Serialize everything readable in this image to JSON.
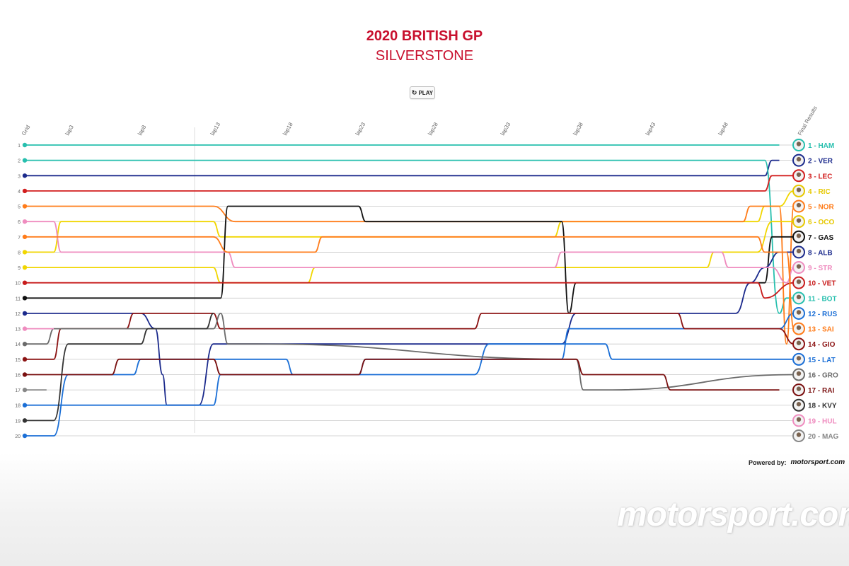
{
  "header": {
    "title": "2020 BRITISH GP",
    "subtitle": "SILVERSTONE",
    "play_label": "PLAY"
  },
  "footer": {
    "powered_label": "Powered by:",
    "powered_logo": "motorsport.com",
    "watermark": "motorsport.com"
  },
  "chart_data": {
    "type": "line",
    "x_axis": {
      "start_label": "Grid",
      "end_label": "Final Results",
      "ticks": [
        3,
        8,
        13,
        18,
        23,
        28,
        33,
        38,
        43,
        48
      ],
      "tick_prefix": "lap"
    },
    "y_axis": {
      "min": 1,
      "max": 20,
      "inverted": true,
      "tick_labels": [
        1,
        2,
        3,
        4,
        5,
        6,
        7,
        8,
        9,
        10,
        11,
        12,
        13,
        14,
        15,
        16,
        17,
        18,
        19,
        20
      ]
    },
    "x_range": [
      0,
      53
    ],
    "series": [
      {
        "name": "HAM",
        "color": "#27bfae",
        "points": [
          [
            0,
            1
          ],
          [
            52,
            1
          ]
        ]
      },
      {
        "name": "VER",
        "color": "#1b2a8c",
        "points": [
          [
            0,
            3
          ],
          [
            51,
            3
          ],
          [
            51.5,
            2
          ],
          [
            52,
            2
          ]
        ]
      },
      {
        "name": "BOT",
        "color": "#27bfae",
        "points": [
          [
            0,
            2
          ],
          [
            51,
            2
          ],
          [
            52,
            12
          ],
          [
            52.5,
            11
          ],
          [
            53,
            11
          ]
        ]
      },
      {
        "name": "LEC",
        "color": "#d21e1e",
        "points": [
          [
            0,
            4
          ],
          [
            51,
            4
          ],
          [
            51.5,
            3
          ],
          [
            53,
            3
          ]
        ]
      },
      {
        "name": "RIC",
        "color": "#f1d600",
        "points": [
          [
            0,
            8
          ],
          [
            2,
            8
          ],
          [
            2.5,
            6
          ],
          [
            13,
            6
          ],
          [
            13.5,
            7
          ],
          [
            36.5,
            7
          ],
          [
            37,
            6
          ],
          [
            50.5,
            6
          ],
          [
            51,
            5
          ],
          [
            52,
            5
          ],
          [
            53,
            4
          ]
        ]
      },
      {
        "name": "NOR",
        "color": "#ff7c1a",
        "points": [
          [
            0,
            5
          ],
          [
            13,
            5
          ],
          [
            14.5,
            6
          ],
          [
            49.5,
            6
          ],
          [
            50,
            5
          ],
          [
            52,
            5
          ],
          [
            52.5,
            14
          ],
          [
            53,
            5
          ]
        ]
      },
      {
        "name": "OCO",
        "color": "#f1d600",
        "points": [
          [
            0,
            9
          ],
          [
            13,
            9
          ],
          [
            13.5,
            10
          ],
          [
            19.5,
            10
          ],
          [
            20,
            9
          ],
          [
            47,
            9
          ],
          [
            47.5,
            8
          ],
          [
            50.5,
            8
          ],
          [
            51.5,
            6
          ],
          [
            53,
            6
          ]
        ]
      },
      {
        "name": "GAS",
        "color": "#111111",
        "points": [
          [
            0,
            11
          ],
          [
            13.5,
            11
          ],
          [
            14,
            5
          ],
          [
            23,
            5
          ],
          [
            23.5,
            6
          ],
          [
            37,
            6
          ],
          [
            37.5,
            12
          ],
          [
            38,
            10
          ],
          [
            51,
            10
          ],
          [
            51.5,
            7
          ],
          [
            53,
            7
          ]
        ]
      },
      {
        "name": "ALB",
        "color": "#1b2a8c",
        "points": [
          [
            0,
            12
          ],
          [
            8,
            12
          ],
          [
            9,
            13
          ],
          [
            9.5,
            16
          ],
          [
            9.8,
            18
          ],
          [
            12,
            18
          ],
          [
            13,
            14
          ],
          [
            37,
            14
          ],
          [
            38,
            12
          ],
          [
            49,
            12
          ],
          [
            50,
            10
          ],
          [
            51,
            9
          ],
          [
            52,
            8
          ],
          [
            53,
            8
          ]
        ]
      },
      {
        "name": "STR",
        "color": "#ef8cbf",
        "points": [
          [
            0,
            6
          ],
          [
            2,
            6
          ],
          [
            2.5,
            8
          ],
          [
            14,
            8
          ],
          [
            14.5,
            9
          ],
          [
            36.5,
            9
          ],
          [
            37,
            8
          ],
          [
            48,
            8
          ],
          [
            48.5,
            9
          ],
          [
            51.5,
            9
          ],
          [
            52.5,
            10
          ],
          [
            53,
            9
          ]
        ]
      },
      {
        "name": "VET",
        "color": "#c81c1c",
        "points": [
          [
            0,
            10
          ],
          [
            50.5,
            10
          ],
          [
            51,
            11
          ],
          [
            53,
            10
          ]
        ]
      },
      {
        "name": "RUS",
        "color": "#1b6fd6",
        "points": [
          [
            0,
            18
          ],
          [
            13,
            18
          ],
          [
            13.5,
            16
          ],
          [
            23,
            16
          ],
          [
            23.5,
            15
          ],
          [
            37,
            15
          ],
          [
            37.5,
            13
          ],
          [
            50,
            13
          ],
          [
            52,
            13
          ],
          [
            53,
            12
          ]
        ]
      },
      {
        "name": "SAI",
        "color": "#ff7c1a",
        "points": [
          [
            0,
            7
          ],
          [
            13,
            7
          ],
          [
            14,
            8
          ],
          [
            20,
            8
          ],
          [
            20.5,
            7
          ],
          [
            50.5,
            7
          ],
          [
            51,
            8
          ],
          [
            52.5,
            8
          ],
          [
            53,
            13
          ]
        ]
      },
      {
        "name": "GIO",
        "color": "#8b1212",
        "points": [
          [
            0,
            15
          ],
          [
            2,
            15
          ],
          [
            2.5,
            13
          ],
          [
            7,
            13
          ],
          [
            7.5,
            12
          ],
          [
            13,
            12
          ],
          [
            13.5,
            13
          ],
          [
            31,
            13
          ],
          [
            31.5,
            12
          ],
          [
            45,
            12
          ],
          [
            45.5,
            13
          ],
          [
            50,
            13
          ],
          [
            52,
            13
          ],
          [
            53,
            14
          ]
        ]
      },
      {
        "name": "LAT",
        "color": "#1b6fd6",
        "points": [
          [
            0,
            20
          ],
          [
            2,
            20
          ],
          [
            3,
            16
          ],
          [
            7.5,
            16
          ],
          [
            8,
            15
          ],
          [
            18,
            15
          ],
          [
            18.5,
            16
          ],
          [
            31,
            16
          ],
          [
            32,
            14
          ],
          [
            40,
            14
          ],
          [
            40.5,
            15
          ],
          [
            51,
            15
          ],
          [
            53,
            15
          ]
        ]
      },
      {
        "name": "GRO",
        "color": "#6b6b6b",
        "points": [
          [
            0,
            14
          ],
          [
            1.5,
            14
          ],
          [
            2,
            13
          ],
          [
            13,
            13
          ],
          [
            13.5,
            12
          ],
          [
            14,
            14
          ],
          [
            16,
            14
          ],
          [
            38,
            15
          ],
          [
            38.5,
            17
          ],
          [
            40.5,
            17
          ],
          [
            53,
            16
          ]
        ]
      },
      {
        "name": "RAI",
        "color": "#7a1010",
        "points": [
          [
            0,
            16
          ],
          [
            6,
            16
          ],
          [
            6.5,
            15
          ],
          [
            13,
            15
          ],
          [
            13.5,
            16
          ],
          [
            23,
            16
          ],
          [
            23.5,
            15
          ],
          [
            38,
            15
          ],
          [
            38.5,
            16
          ],
          [
            44,
            16
          ],
          [
            44.5,
            17
          ],
          [
            52,
            17
          ]
        ]
      },
      {
        "name": "KVY",
        "color": "#333333",
        "points": [
          [
            0,
            19
          ],
          [
            2,
            19
          ],
          [
            3,
            14
          ],
          [
            8,
            14
          ],
          [
            8.5,
            13
          ],
          [
            12.5,
            13
          ],
          [
            13,
            12
          ]
        ]
      },
      {
        "name": "HUL",
        "color": "#ef8cbf",
        "points": [
          [
            0,
            13
          ],
          [
            2,
            13
          ]
        ]
      },
      {
        "name": "MAG",
        "color": "#888888",
        "points": [
          [
            0,
            17
          ],
          [
            1.5,
            17
          ]
        ]
      }
    ],
    "final_results": [
      {
        "pos": "1",
        "driver": "HAM",
        "color": "#27bfae"
      },
      {
        "pos": "2",
        "driver": "VER",
        "color": "#1b2a8c"
      },
      {
        "pos": "3",
        "driver": "LEC",
        "color": "#d21e1e"
      },
      {
        "pos": "4",
        "driver": "RIC",
        "color": "#e6c800"
      },
      {
        "pos": "5",
        "driver": "NOR",
        "color": "#ff7c1a"
      },
      {
        "pos": "6",
        "driver": "OCO",
        "color": "#e6c800"
      },
      {
        "pos": "7",
        "driver": "GAS",
        "color": "#111111"
      },
      {
        "pos": "8",
        "driver": "ALB",
        "color": "#1b2a8c"
      },
      {
        "pos": "9",
        "driver": "STR",
        "color": "#ef8cbf"
      },
      {
        "pos": "10",
        "driver": "VET",
        "color": "#c81c1c"
      },
      {
        "pos": "11",
        "driver": "BOT",
        "color": "#27bfae"
      },
      {
        "pos": "12",
        "driver": "RUS",
        "color": "#1b6fd6"
      },
      {
        "pos": "13",
        "driver": "SAI",
        "color": "#ff7c1a"
      },
      {
        "pos": "14",
        "driver": "GIO",
        "color": "#8b1212"
      },
      {
        "pos": "15",
        "driver": "LAT",
        "color": "#1b6fd6"
      },
      {
        "pos": "16",
        "driver": "GRO",
        "color": "#6b6b6b"
      },
      {
        "pos": "17",
        "driver": "RAI",
        "color": "#7a1010"
      },
      {
        "pos": "18",
        "driver": "KVY",
        "color": "#333333"
      },
      {
        "pos": "19",
        "driver": "HUL",
        "color": "#ef8cbf"
      },
      {
        "pos": "20",
        "driver": "MAG",
        "color": "#888888"
      }
    ]
  }
}
